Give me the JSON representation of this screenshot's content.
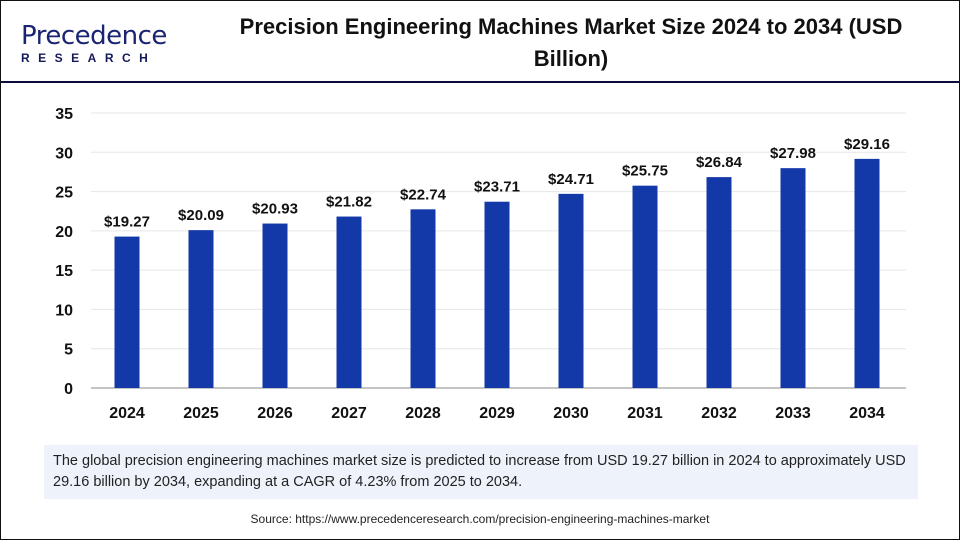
{
  "logo": {
    "line1": "Precedence",
    "line2": "RESEARCH"
  },
  "title": "Precision Engineering Machines Market Size 2024 to 2034 (USD Billion)",
  "note": "The global precision engineering machines market size is predicted to increase from USD 19.27 billion in 2024 to approximately USD 29.16 billion by 2034, expanding at a CAGR of 4.23% from 2025 to 2034.",
  "source": "Source: https://www.precedenceresearch.com/precision-engineering-machines-market",
  "colors": {
    "bar": "#1338a8",
    "grid": "#e6e6e6",
    "axis": "#b0b0b0",
    "header_line": "#0c0c3c"
  },
  "chart_data": {
    "type": "bar",
    "title": "Precision Engineering Machines Market Size 2024 to 2034 (USD Billion)",
    "categories": [
      "2024",
      "2025",
      "2026",
      "2027",
      "2028",
      "2029",
      "2030",
      "2031",
      "2032",
      "2033",
      "2034"
    ],
    "values": [
      19.27,
      20.09,
      20.93,
      21.82,
      22.74,
      23.71,
      24.71,
      25.75,
      26.84,
      27.98,
      29.16
    ],
    "labels": [
      "$19.27",
      "$20.09",
      "$20.93",
      "$21.82",
      "$22.74",
      "$23.71",
      "$24.71",
      "$25.75",
      "$26.84",
      "$27.98",
      "$29.16"
    ],
    "ylim": [
      0,
      35
    ],
    "yticks": [
      0,
      5,
      10,
      15,
      20,
      25,
      30,
      35
    ],
    "grid": true,
    "xlabel": "",
    "ylabel": ""
  }
}
